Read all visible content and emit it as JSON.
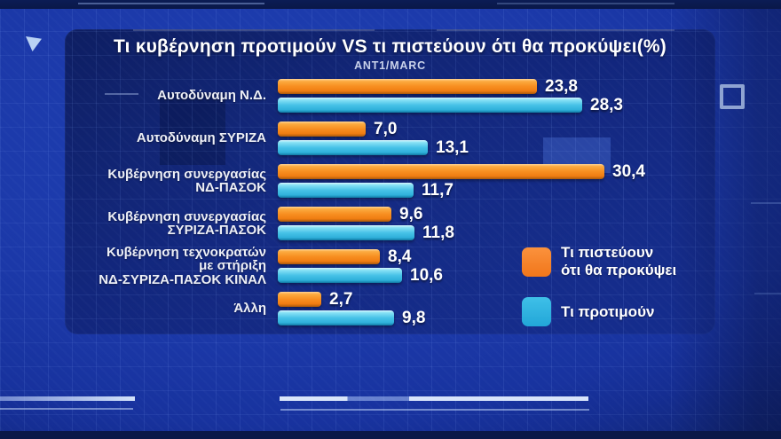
{
  "header": {
    "title": "Τι κυβέρνηση προτιμούν VS τι πιστεύουν ότι θα προκύψει(%)",
    "source": "ANT1/MARC"
  },
  "legend": {
    "items": [
      {
        "label": "Τι πιστεύουν\nότι θα προκύψει",
        "color": "#f6821f"
      },
      {
        "label": "Τι προτιμούν",
        "color": "#2cb1e2"
      }
    ]
  },
  "chart_data": {
    "type": "bar",
    "orientation": "horizontal",
    "title": "Τι κυβέρνηση προτιμούν VS τι πιστεύουν ότι θα προκύψει(%)",
    "subtitle": "ANT1/MARC",
    "unit": "%",
    "decimal_separator": ",",
    "xlim": [
      0,
      32
    ],
    "grid": false,
    "legend_position": "right-bottom",
    "categories": [
      "Αυτοδύναμη Ν.Δ.",
      "Αυτοδύναμη ΣΥΡΙΖΑ",
      "Κυβέρνηση συνεργασίας\nΝΔ-ΠΑΣΟΚ",
      "Κυβέρνηση συνεργασίας\nΣΥΡΙΖΑ-ΠΑΣΟΚ",
      "Κυβέρνηση τεχνοκρατών\nμε στήριξη\nΝΔ-ΣΥΡΙΖΑ-ΠΑΣΟΚ ΚΙΝΑΛ",
      "Άλλη"
    ],
    "series": [
      {
        "name": "Τι πιστεύουν ότι θα προκύψει",
        "color": "#f6821f",
        "values": [
          23.8,
          7.0,
          30.4,
          9.6,
          8.4,
          2.7
        ],
        "labels": [
          "23,8",
          "7,0",
          "30,4",
          "9,6",
          "8,4",
          "2,7"
        ]
      },
      {
        "name": "Τι προτιμούν",
        "color": "#2cb1e2",
        "values": [
          28.3,
          13.1,
          11.7,
          11.8,
          10.6,
          9.8
        ],
        "labels": [
          "28,3",
          "13,1",
          "11,7",
          "11,8",
          "10,6",
          "9,8"
        ]
      }
    ]
  },
  "colors": {
    "background": "#1b38a8",
    "panel": "#10236b",
    "bar_believe": "#f6821f",
    "bar_prefer": "#2cb1e2",
    "value_text": "#ffffff",
    "label_text": "#edeff6",
    "subtitle_text": "#c9d2ea"
  },
  "icons": {
    "corner_triangle_icon": "◤",
    "outline_square_icon": "▢"
  }
}
